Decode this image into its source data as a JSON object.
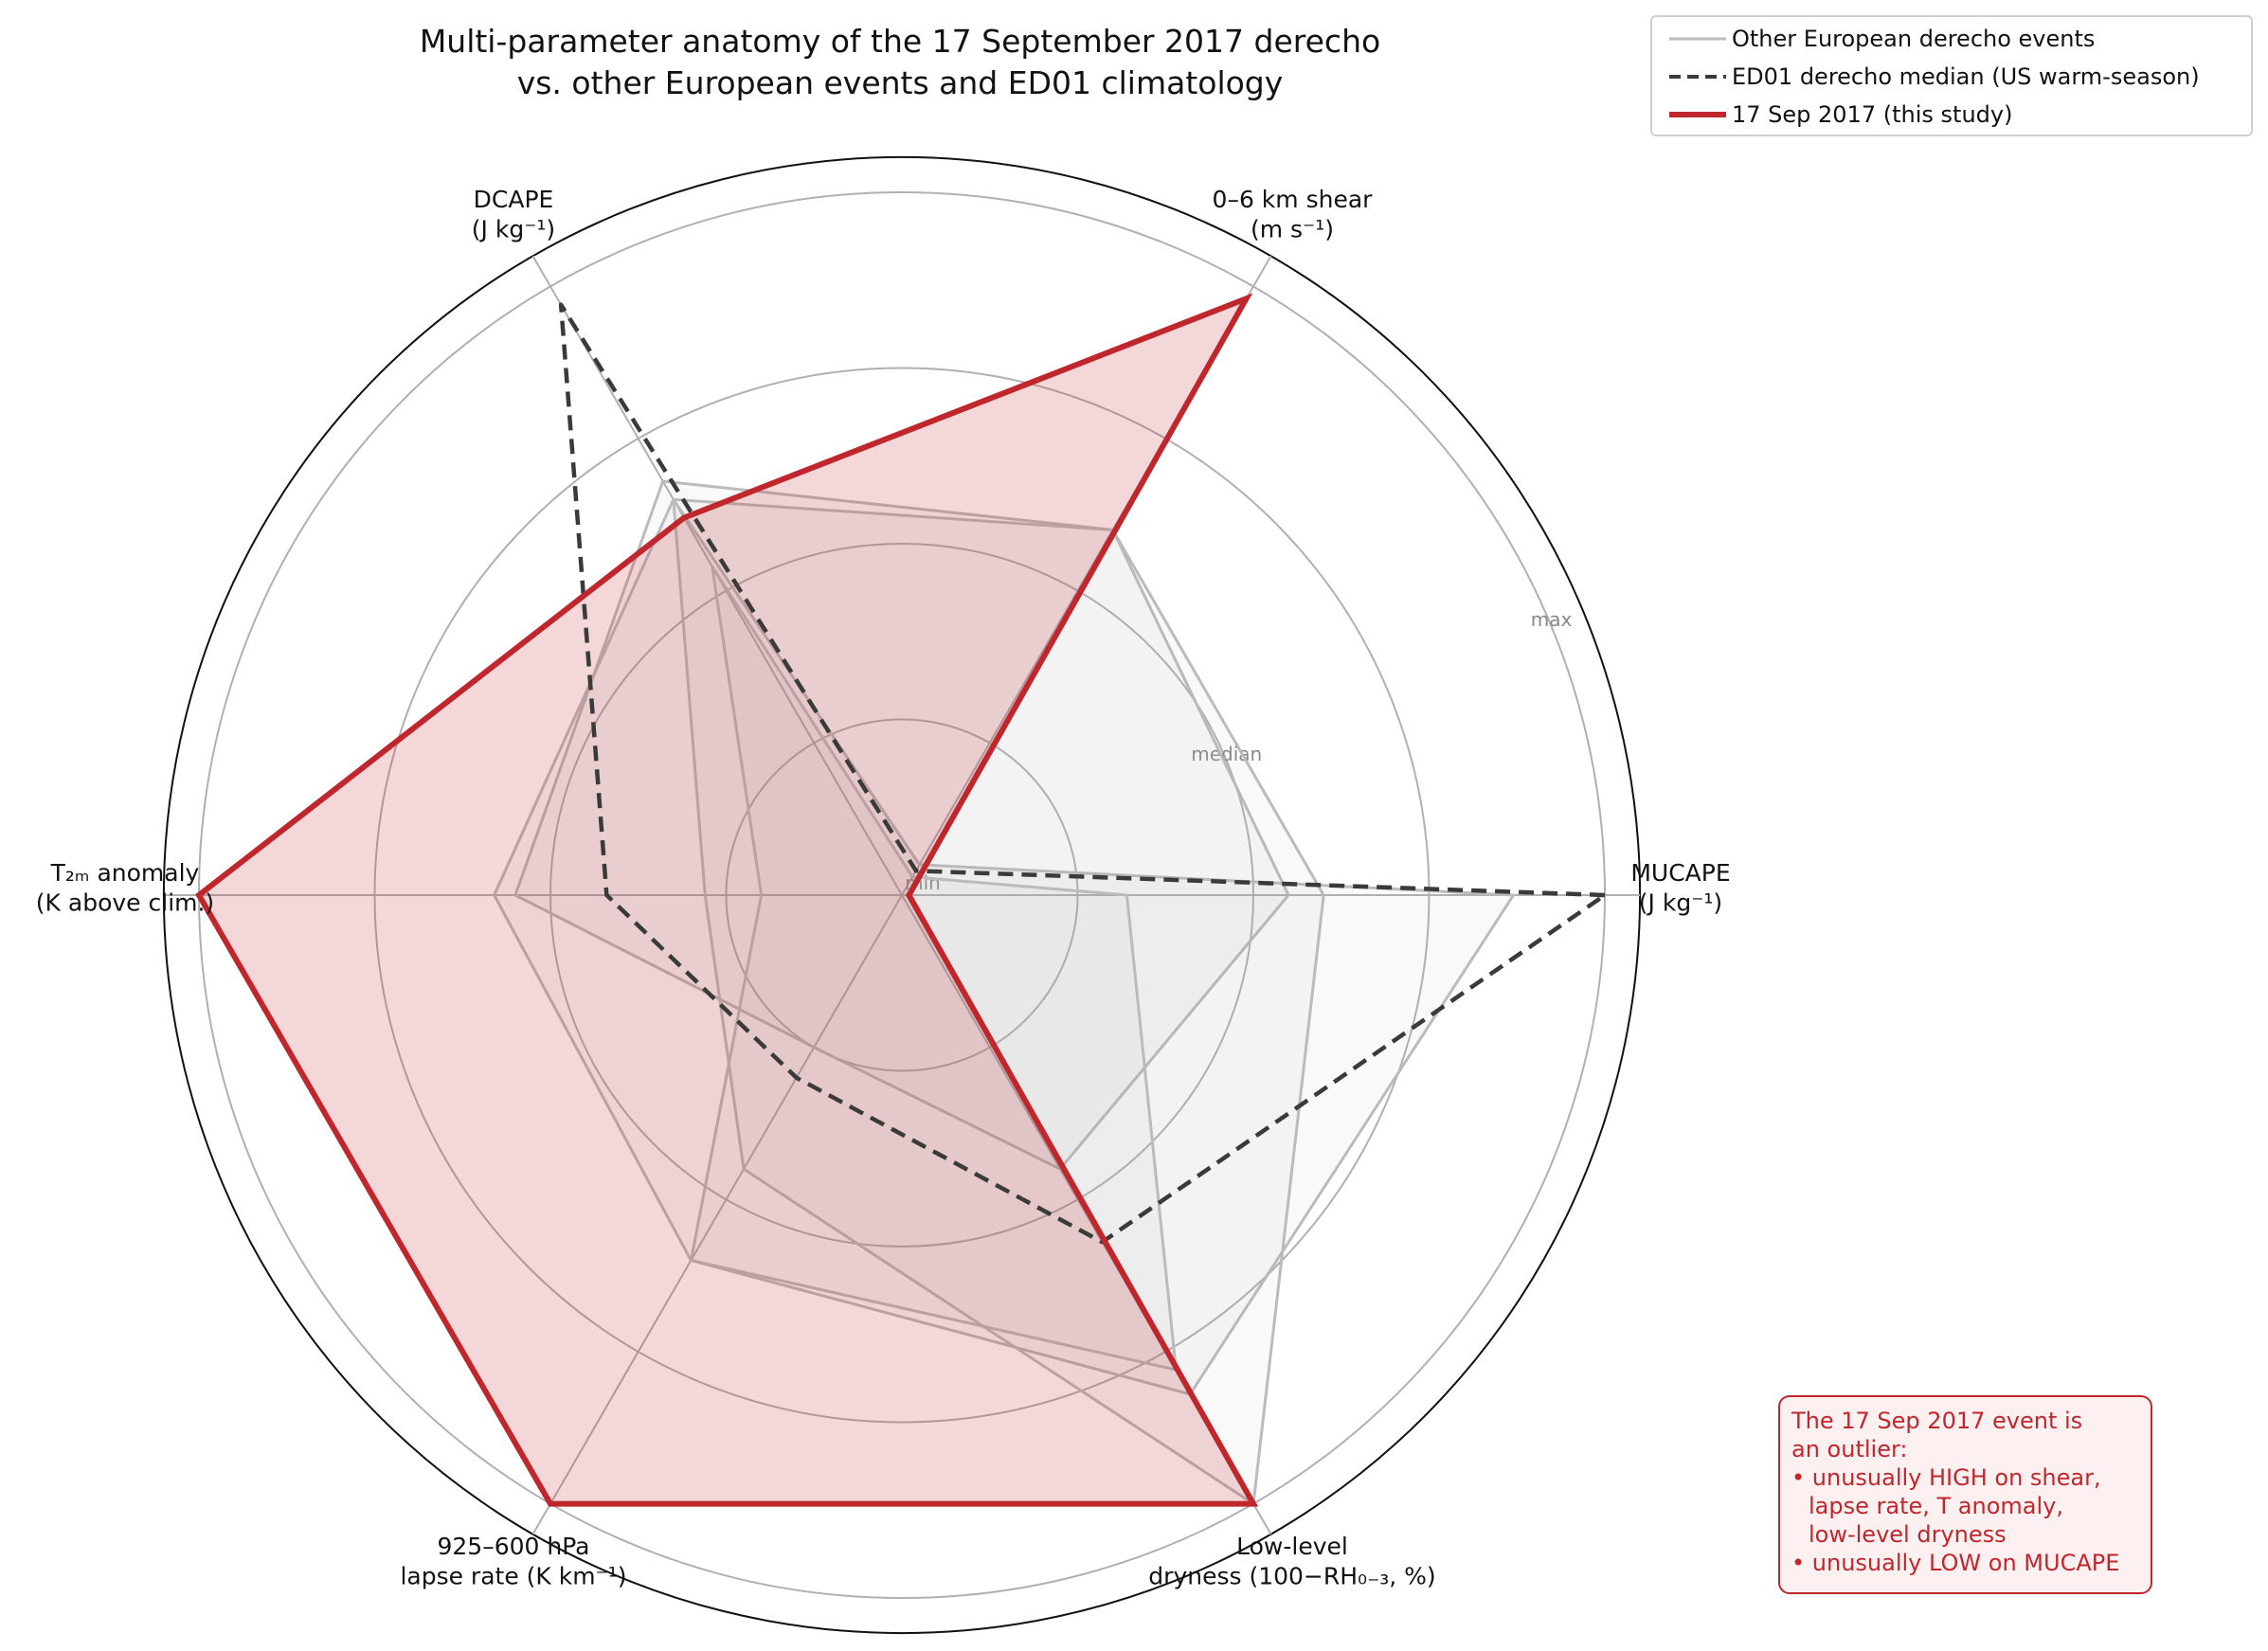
{
  "chart_data": {
    "type": "radar",
    "title_line1": "Multi-parameter anatomy of the 17 September 2017 derecho",
    "title_line2": "vs. other European events and ED01 climatology",
    "ring_labels": {
      "min": "min",
      "median": "median",
      "max": "max"
    },
    "axes": [
      {
        "label_line1": "MUCAPE",
        "label_line2": "(J kg⁻¹)"
      },
      {
        "label_line1": "0–6 km shear",
        "label_line2": "(m s⁻¹)"
      },
      {
        "label_line1": "DCAPE",
        "label_line2": "(J kg⁻¹)"
      },
      {
        "label_line1": "T₂ₘ anomaly",
        "label_line2": "(K above clim.)"
      },
      {
        "label_line1": "925–600 hPa",
        "label_line2": "lapse rate (K km⁻¹)"
      },
      {
        "label_line1": "Low-level",
        "label_line2": "dryness (100−RH₀₋₃, %)"
      }
    ],
    "scale": "normalized: 0 = min, 0.5 = median, 1.0 = max",
    "rlim": [
      0,
      1.05
    ],
    "series": [
      {
        "name": "Other European derecho events",
        "style": "gray",
        "values": [
          0.55,
          0.6,
          0.68,
          0.55,
          0.25,
          0.45
        ]
      },
      {
        "name": "Other European derecho events",
        "style": "gray",
        "values": [
          0.87,
          0.05,
          0.65,
          0.58,
          0.6,
          0.82
        ]
      },
      {
        "name": "Other European derecho events",
        "style": "gray",
        "values": [
          0.6,
          0.6,
          0.65,
          0.28,
          0.45,
          1.0
        ]
      },
      {
        "name": "Other European derecho events",
        "style": "gray",
        "values": [
          0.32,
          0.03,
          0.54,
          0.2,
          0.6,
          0.78
        ]
      },
      {
        "name": "ED01 derecho median (US warm-season)",
        "style": "median",
        "values": [
          1.0,
          0.04,
          0.97,
          0.42,
          0.3,
          0.57
        ]
      },
      {
        "name": "17 Sep 2017 (this study)",
        "style": "study",
        "values": [
          0.01,
          0.98,
          0.62,
          1.0,
          1.0,
          1.0
        ]
      }
    ],
    "legend": [
      {
        "label": "Other European derecho events",
        "color": "#bbbbbb"
      },
      {
        "label": "ED01 derecho median (US warm-season)",
        "color": "#3a3a3a"
      },
      {
        "label": "17 Sep 2017 (this study)",
        "color": "#c0272d"
      }
    ],
    "annotation": {
      "lines": [
        "The 17 Sep 2017 event is",
        "an outlier:",
        "• unusually HIGH on shear,",
        "lapse rate, T anomaly,",
        "low-level dryness",
        "• unusually LOW on MUCAPE"
      ]
    },
    "colors": {
      "study": "#c0272d",
      "median": "#3a3a3a",
      "gray": "#bbbbbb",
      "grid": "#b0b0b0"
    }
  }
}
